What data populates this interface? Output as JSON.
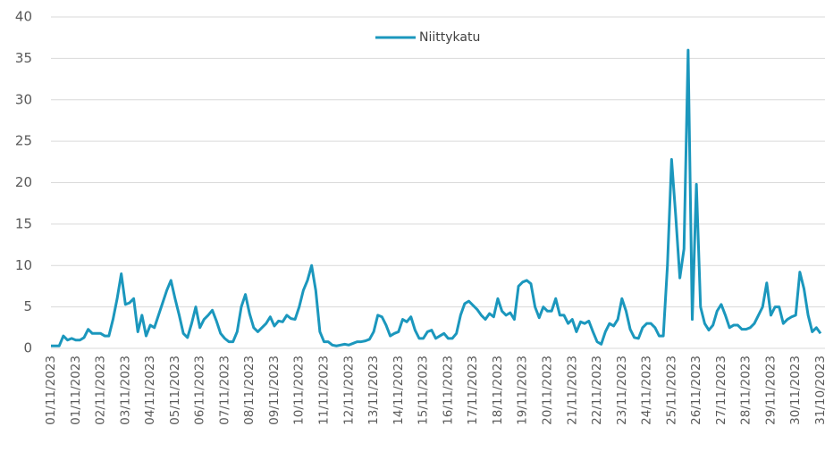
{
  "chart_data": {
    "type": "line",
    "categories": [
      "01/11/2023",
      null,
      null,
      null,
      null,
      null,
      "01/11/2023",
      null,
      null,
      null,
      null,
      null,
      "02/11/2023",
      null,
      null,
      null,
      null,
      null,
      "03/11/2023",
      null,
      null,
      null,
      null,
      null,
      "04/11/2023",
      null,
      null,
      null,
      null,
      null,
      "05/11/2023",
      null,
      null,
      null,
      null,
      null,
      "06/11/2023",
      null,
      null,
      null,
      null,
      null,
      "07/11/2023",
      null,
      null,
      null,
      null,
      null,
      "08/11/2023",
      null,
      null,
      null,
      null,
      null,
      "09/11/2023",
      null,
      null,
      null,
      null,
      null,
      "10/11/2023",
      null,
      null,
      null,
      null,
      null,
      "11/11/2023",
      null,
      null,
      null,
      null,
      null,
      "12/11/2023",
      null,
      null,
      null,
      null,
      null,
      "13/11/2023",
      null,
      null,
      null,
      null,
      null,
      "14/11/2023",
      null,
      null,
      null,
      null,
      null,
      "15/11/2023",
      null,
      null,
      null,
      null,
      null,
      "16/11/2023",
      null,
      null,
      null,
      null,
      null,
      "17/11/2023",
      null,
      null,
      null,
      null,
      null,
      "18/11/2023",
      null,
      null,
      null,
      null,
      null,
      "19/11/2023",
      null,
      null,
      null,
      null,
      null,
      "20/11/2023",
      null,
      null,
      null,
      null,
      null,
      "21/11/2023",
      null,
      null,
      null,
      null,
      null,
      "22/11/2023",
      null,
      null,
      null,
      null,
      null,
      "23/11/2023",
      null,
      null,
      null,
      null,
      null,
      "24/11/2023",
      null,
      null,
      null,
      null,
      null,
      "25/11/2023",
      null,
      null,
      null,
      null,
      null,
      "26/11/2023",
      null,
      null,
      null,
      null,
      null,
      "27/11/2023",
      null,
      null,
      null,
      null,
      null,
      "28/11/2023",
      null,
      null,
      null,
      null,
      null,
      "29/11/2023",
      null,
      null,
      null,
      null,
      null,
      "30/11/2023",
      null,
      null,
      null,
      null,
      null,
      "31/10/2023"
    ],
    "series": [
      {
        "name": "Niittykatu",
        "color": "#1b97bd",
        "values": [
          0.3,
          0.3,
          0.3,
          1.5,
          1,
          1.2,
          1,
          1,
          1.3,
          2.3,
          1.8,
          1.8,
          1.8,
          1.5,
          1.5,
          3.5,
          6,
          9,
          5.3,
          5.5,
          6,
          2,
          4,
          1.5,
          2.8,
          2.5,
          4,
          5.5,
          7,
          8.2,
          6,
          4,
          1.8,
          1.3,
          3,
          5,
          2.5,
          3.5,
          4,
          4.6,
          3.3,
          1.8,
          1.2,
          0.8,
          0.8,
          2,
          5,
          6.5,
          4.2,
          2.5,
          2,
          2.5,
          3,
          3.8,
          2.7,
          3.3,
          3.2,
          4,
          3.6,
          3.5,
          5,
          7,
          8.2,
          10,
          7,
          2,
          0.8,
          0.8,
          0.4,
          0.3,
          0.4,
          0.5,
          0.4,
          0.6,
          0.8,
          0.8,
          0.9,
          1.1,
          2,
          4,
          3.8,
          2.8,
          1.5,
          1.8,
          2,
          3.5,
          3.2,
          3.8,
          2.2,
          1.2,
          1.2,
          2,
          2.2,
          1.2,
          1.5,
          1.8,
          1.2,
          1.2,
          1.8,
          4,
          5.4,
          5.7,
          5.2,
          4.7,
          4,
          3.5,
          4.2,
          3.8,
          6,
          4.5,
          4,
          4.3,
          3.5,
          7.5,
          8,
          8.2,
          7.8,
          5,
          3.7,
          5,
          4.5,
          4.5,
          6,
          4,
          4,
          3,
          3.5,
          2,
          3.2,
          3,
          3.3,
          2,
          0.8,
          0.5,
          2,
          3,
          2.7,
          3.5,
          6,
          4.5,
          2.3,
          1.3,
          1.2,
          2.5,
          3,
          3,
          2.5,
          1.5,
          1.5,
          10,
          22.8,
          16,
          8.5,
          12,
          36,
          3.5,
          19.8,
          5,
          3,
          2.2,
          2.8,
          4.5,
          5.3,
          4,
          2.5,
          2.8,
          2.8,
          2.3,
          2.3,
          2.5,
          3,
          4,
          5,
          7.9,
          4,
          5,
          5,
          3,
          3.5,
          3.8,
          4,
          9.2,
          7.2,
          4,
          2,
          2.5,
          1.8
        ]
      }
    ],
    "ylim": [
      0,
      40
    ],
    "yticks": [
      0,
      5,
      10,
      15,
      20,
      25,
      30,
      35,
      40
    ],
    "grid": true,
    "legend": "top"
  }
}
